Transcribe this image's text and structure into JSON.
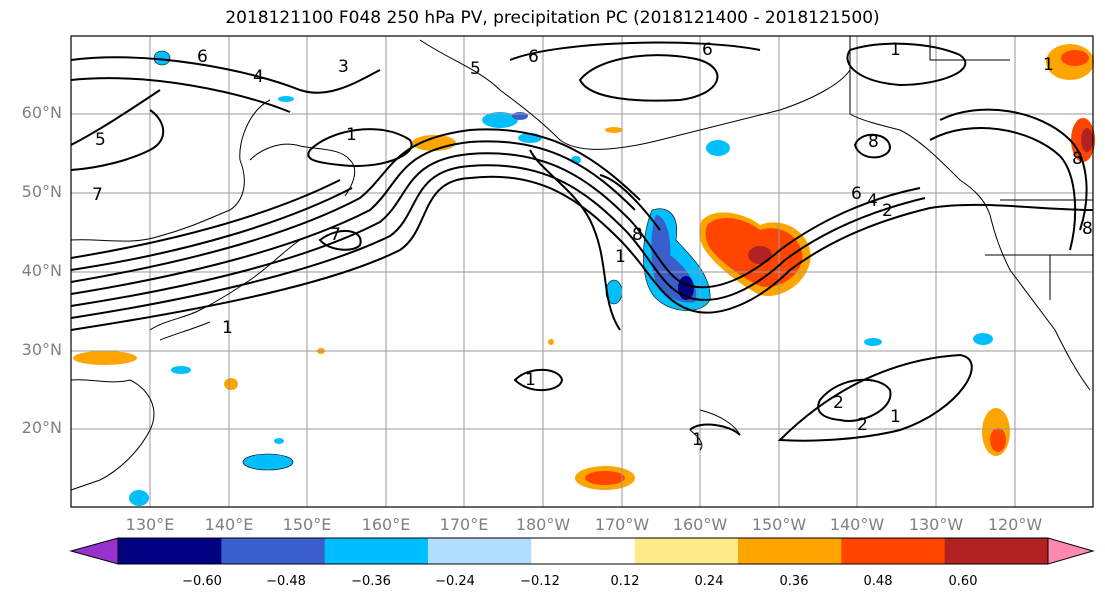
{
  "title": "2018121100 F048 250 hPa PV, precipitation PC (2018121400 - 2018121500)",
  "lat_labels": [
    "60°N",
    "50°N",
    "40°N",
    "30°N",
    "20°N"
  ],
  "lon_labels": [
    "130°E",
    "140°E",
    "150°E",
    "160°E",
    "170°E",
    "180°W",
    "170°W",
    "160°W",
    "150°W",
    "140°W",
    "130°W",
    "120°W"
  ],
  "contour_labels": [
    "6",
    "4",
    "3",
    "5",
    "6",
    "6",
    "7",
    "5",
    "1",
    "7",
    "8",
    "1",
    "1",
    "8",
    "6",
    "4",
    "2",
    "8",
    "8",
    "1",
    "1",
    "2",
    "2",
    "1",
    "1",
    "1"
  ],
  "colorbar": {
    "ticks": [
      "−0.60",
      "−0.48",
      "−0.36",
      "−0.24",
      "−0.12",
      "0.12",
      "0.24",
      "0.36",
      "0.48",
      "0.60"
    ],
    "colors": [
      "#9932cc",
      "#000080",
      "#3a5fcd",
      "#00bfff",
      "#b2dfff",
      "#ffffff",
      "#ffeb8a",
      "#ffa500",
      "#ff4500",
      "#b22222",
      "#ff88b0"
    ]
  }
}
